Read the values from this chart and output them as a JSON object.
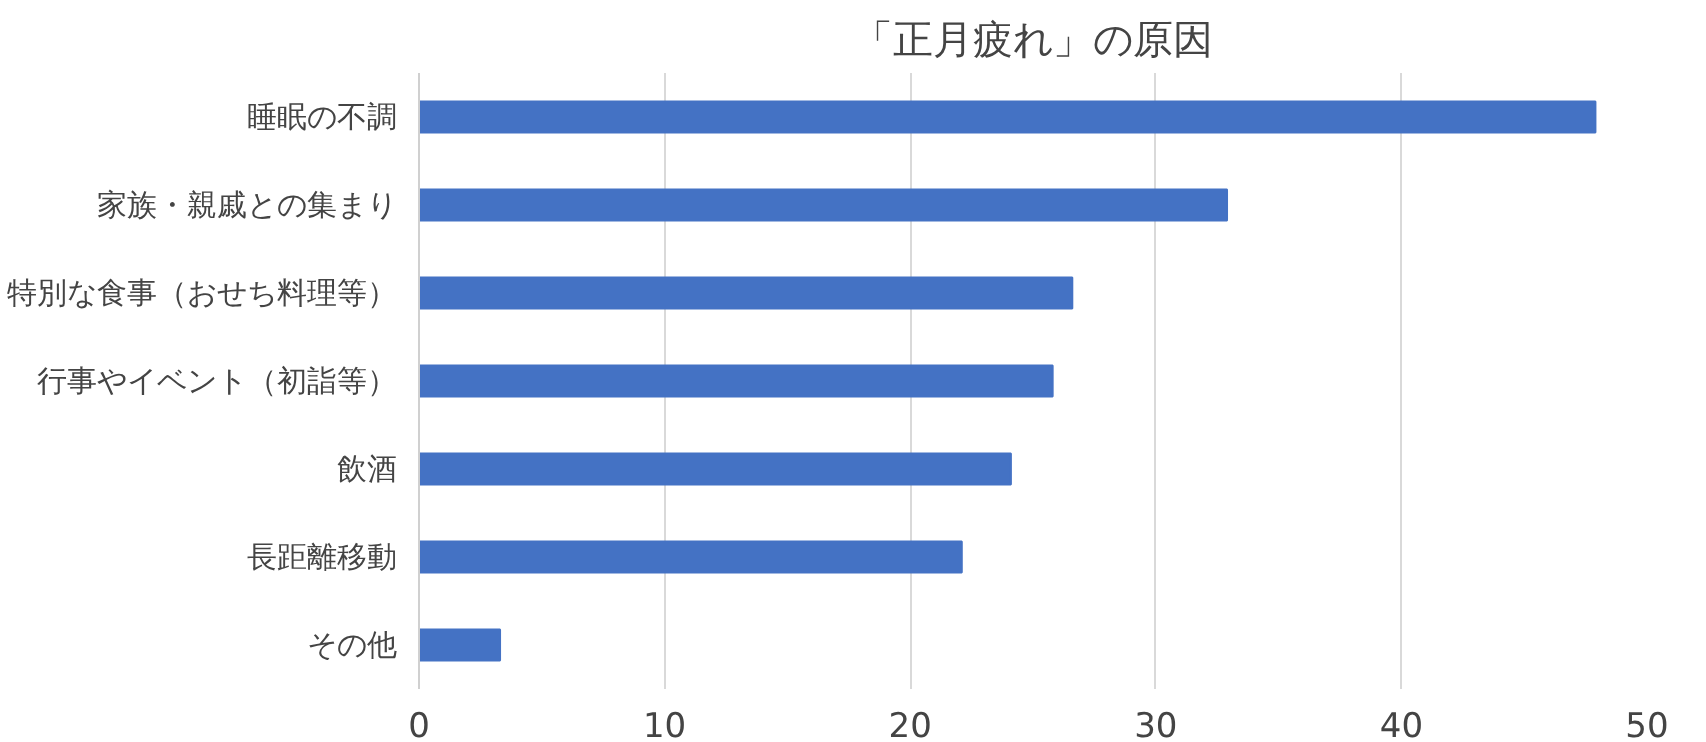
{
  "chart_data": {
    "type": "bar",
    "orientation": "horizontal",
    "title": "「正月疲れ」の原因",
    "categories": [
      "睡眠の不調",
      "家族・親戚との集まり",
      "特別な食事（おせち料理等）",
      "行事やイベント（初詣等）",
      "飲酒",
      "長距離移動",
      "その他"
    ],
    "values": [
      47.9,
      32.9,
      26.6,
      25.8,
      24.1,
      22.1,
      3.3
    ],
    "color": "#4472c4",
    "xlim": [
      0,
      50
    ],
    "xticks": [
      0,
      10,
      20,
      30,
      40,
      50
    ],
    "grid": "x"
  }
}
